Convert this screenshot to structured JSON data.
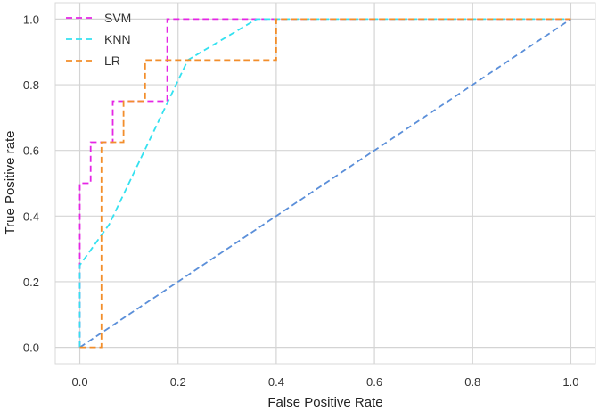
{
  "chart_data": {
    "type": "line",
    "xlabel": "False Positive Rate",
    "ylabel": "True Positive rate",
    "xlim": [
      -0.05,
      1.05
    ],
    "ylim": [
      -0.05,
      1.05
    ],
    "xticks": [
      "0.0",
      "0.2",
      "0.4",
      "0.6",
      "0.8",
      "1.0"
    ],
    "yticks": [
      "0.0",
      "0.2",
      "0.4",
      "0.6",
      "0.8",
      "1.0"
    ],
    "grid": true,
    "legend_position": "top-left",
    "series": [
      {
        "name": "SVM",
        "color": "#e526e5",
        "x": [
          0.0,
          0.0,
          0.0,
          0.022,
          0.022,
          0.044,
          0.067,
          0.067,
          0.178,
          0.178,
          1.0
        ],
        "y": [
          0.0,
          0.25,
          0.5,
          0.5,
          0.625,
          0.625,
          0.625,
          0.75,
          0.75,
          1.0,
          1.0
        ]
      },
      {
        "name": "KNN",
        "color": "#34e1f0",
        "x": [
          0.0,
          0.0,
          0.06,
          0.22,
          0.36,
          1.0
        ],
        "y": [
          0.0,
          0.25,
          0.375,
          0.875,
          1.0,
          1.0
        ]
      },
      {
        "name": "LR",
        "color": "#f28e2b",
        "x": [
          0.0,
          0.044,
          0.044,
          0.089,
          0.089,
          0.133,
          0.133,
          0.4,
          0.4,
          1.0
        ],
        "y": [
          0.0,
          0.0,
          0.625,
          0.625,
          0.75,
          0.75,
          0.875,
          0.875,
          1.0,
          1.0
        ]
      },
      {
        "color": "#5b8fd9",
        "x": [
          0.0,
          1.0
        ],
        "y": [
          0.0,
          1.0
        ]
      }
    ]
  }
}
